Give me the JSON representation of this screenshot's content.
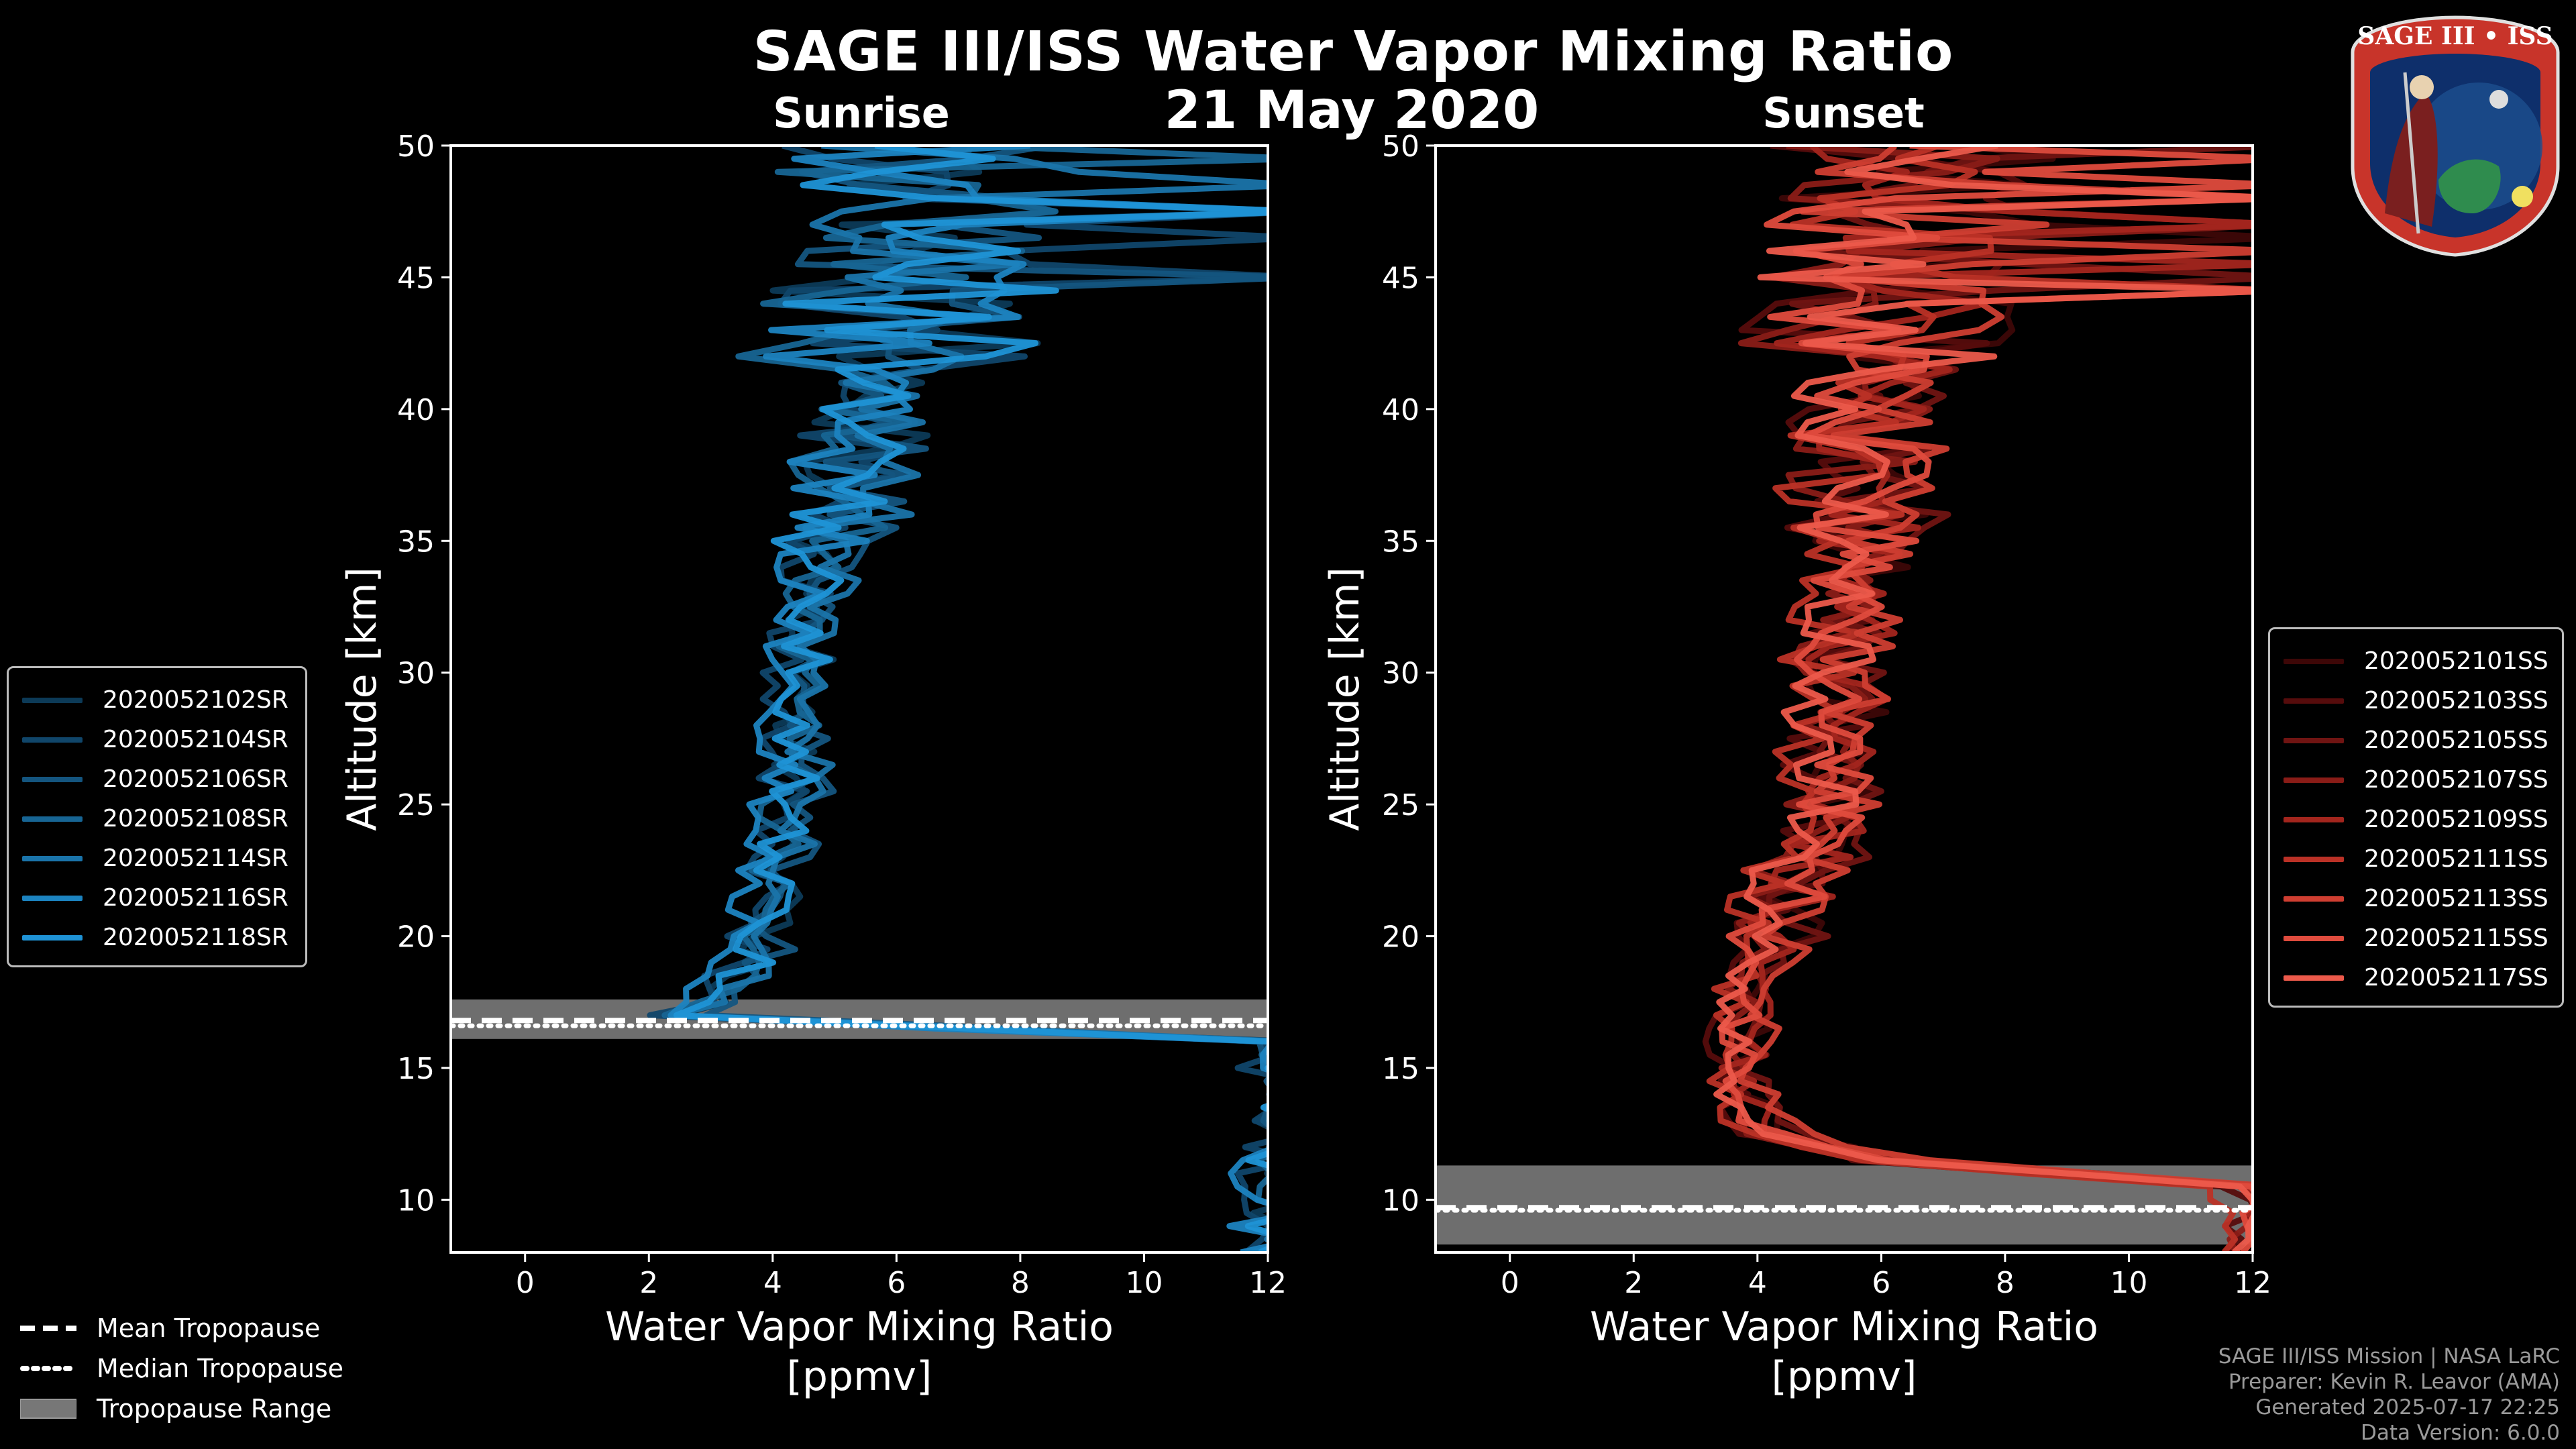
{
  "title": "SAGE III/ISS Water Vapor Mixing Ratio",
  "date": "21 May 2020",
  "badge": {
    "text": "SAGE III • ISS"
  },
  "panels": {
    "sunrise": {
      "subtitle": "Sunrise"
    },
    "sunset": {
      "subtitle": "Sunset"
    }
  },
  "axes": {
    "xlabel_line1": "Water Vapor Mixing Ratio",
    "xlabel_line2": "[ppmv]",
    "ylabel": "Altitude [km]"
  },
  "tropopause_legend": {
    "mean": "Mean Tropopause",
    "median": "Median Tropopause",
    "range": "Tropopause Range"
  },
  "credits": {
    "line1": "SAGE III/ISS Mission | NASA LaRC",
    "line2": "Preparer: Kevin R. Leavor (AMA)",
    "line3": "Generated 2025-07-17 22:25",
    "line4": "Data Version: 6.0.0"
  },
  "colors": {
    "sunrise_series": [
      "#0c3a57",
      "#10466a",
      "#14557f",
      "#176594",
      "#1a74aa",
      "#1c83c0",
      "#1f93d6"
    ],
    "sunset_series": [
      "#3d0707",
      "#560c0c",
      "#701412",
      "#8a1c17",
      "#a3251d",
      "#bb3126",
      "#cf3e31",
      "#df4b3d",
      "#ec5a4b"
    ],
    "tropopause_range": "#6e6e6e"
  },
  "chart_data": [
    {
      "type": "line",
      "panel": "sunrise",
      "title": "Sunrise",
      "xlabel": "Water Vapor Mixing Ratio [ppmv]",
      "ylabel": "Altitude [km]",
      "xlim": [
        -1.2,
        12
      ],
      "ylim": [
        8,
        50
      ],
      "xticks": [
        0,
        2,
        4,
        6,
        8,
        10,
        12
      ],
      "yticks": [
        10,
        15,
        20,
        25,
        30,
        35,
        40,
        45,
        50
      ],
      "legend_position": "center-left outside",
      "series": [
        {
          "name": "2020052102SR",
          "seed": 11,
          "offset": 0.1
        },
        {
          "name": "2020052104SR",
          "seed": 23,
          "offset": -0.15
        },
        {
          "name": "2020052106SR",
          "seed": 37,
          "offset": 0.25
        },
        {
          "name": "2020052108SR",
          "seed": 41,
          "offset": -0.05
        },
        {
          "name": "2020052114SR",
          "seed": 53,
          "offset": 0.3
        },
        {
          "name": "2020052116SR",
          "seed": 67,
          "offset": -0.25
        },
        {
          "name": "2020052118SR",
          "seed": 79,
          "offset": 0.05
        }
      ],
      "profile_median": [
        {
          "alt": 10.5,
          "ppmv": 12
        },
        {
          "alt": 13,
          "ppmv": 12
        },
        {
          "alt": 15,
          "ppmv": 12
        },
        {
          "alt": 16,
          "ppmv": 12
        },
        {
          "alt": 17,
          "ppmv": 2.5
        },
        {
          "alt": 18,
          "ppmv": 3.3
        },
        {
          "alt": 20,
          "ppmv": 3.8
        },
        {
          "alt": 25,
          "ppmv": 4.3
        },
        {
          "alt": 30,
          "ppmv": 4.4
        },
        {
          "alt": 35,
          "ppmv": 4.8
        },
        {
          "alt": 40,
          "ppmv": 5.6
        },
        {
          "alt": 45,
          "ppmv": 6.2
        },
        {
          "alt": 50,
          "ppmv": 6.5
        }
      ],
      "tropopause": {
        "mean": 16.8,
        "median": 16.6,
        "range": [
          16.1,
          17.6
        ]
      }
    },
    {
      "type": "line",
      "panel": "sunset",
      "title": "Sunset",
      "xlabel": "Water Vapor Mixing Ratio [ppmv]",
      "ylabel": "Altitude [km]",
      "xlim": [
        -1.2,
        12
      ],
      "ylim": [
        8,
        50
      ],
      "xticks": [
        0,
        2,
        4,
        6,
        8,
        10,
        12
      ],
      "yticks": [
        10,
        15,
        20,
        25,
        30,
        35,
        40,
        45,
        50
      ],
      "legend_position": "center-right",
      "series": [
        {
          "name": "2020052101SS",
          "seed": 101,
          "offset": 0.2
        },
        {
          "name": "2020052103SS",
          "seed": 113,
          "offset": -0.2
        },
        {
          "name": "2020052105SS",
          "seed": 127,
          "offset": 0.35
        },
        {
          "name": "2020052107SS",
          "seed": 131,
          "offset": -0.1
        },
        {
          "name": "2020052109SS",
          "seed": 149,
          "offset": 0.15
        },
        {
          "name": "2020052111SS",
          "seed": 157,
          "offset": -0.3
        },
        {
          "name": "2020052113SS",
          "seed": 163,
          "offset": 0.4
        },
        {
          "name": "2020052115SS",
          "seed": 179,
          "offset": 0.0
        },
        {
          "name": "2020052117SS",
          "seed": 191,
          "offset": -0.15
        }
      ],
      "profile_median": [
        {
          "alt": 8.5,
          "ppmv": 12
        },
        {
          "alt": 10.5,
          "ppmv": 12
        },
        {
          "alt": 11.5,
          "ppmv": 6
        },
        {
          "alt": 12.5,
          "ppmv": 4.2
        },
        {
          "alt": 14,
          "ppmv": 3.7
        },
        {
          "alt": 15,
          "ppmv": 3.6
        },
        {
          "alt": 17,
          "ppmv": 3.8
        },
        {
          "alt": 20,
          "ppmv": 4.2
        },
        {
          "alt": 25,
          "ppmv": 5.2
        },
        {
          "alt": 30,
          "ppmv": 5.3
        },
        {
          "alt": 35,
          "ppmv": 5.6
        },
        {
          "alt": 40,
          "ppmv": 5.8
        },
        {
          "alt": 45,
          "ppmv": 6.2
        },
        {
          "alt": 50,
          "ppmv": 6.5
        }
      ],
      "tropopause": {
        "mean": 9.7,
        "median": 9.6,
        "range": [
          8.3,
          11.3
        ]
      }
    }
  ]
}
